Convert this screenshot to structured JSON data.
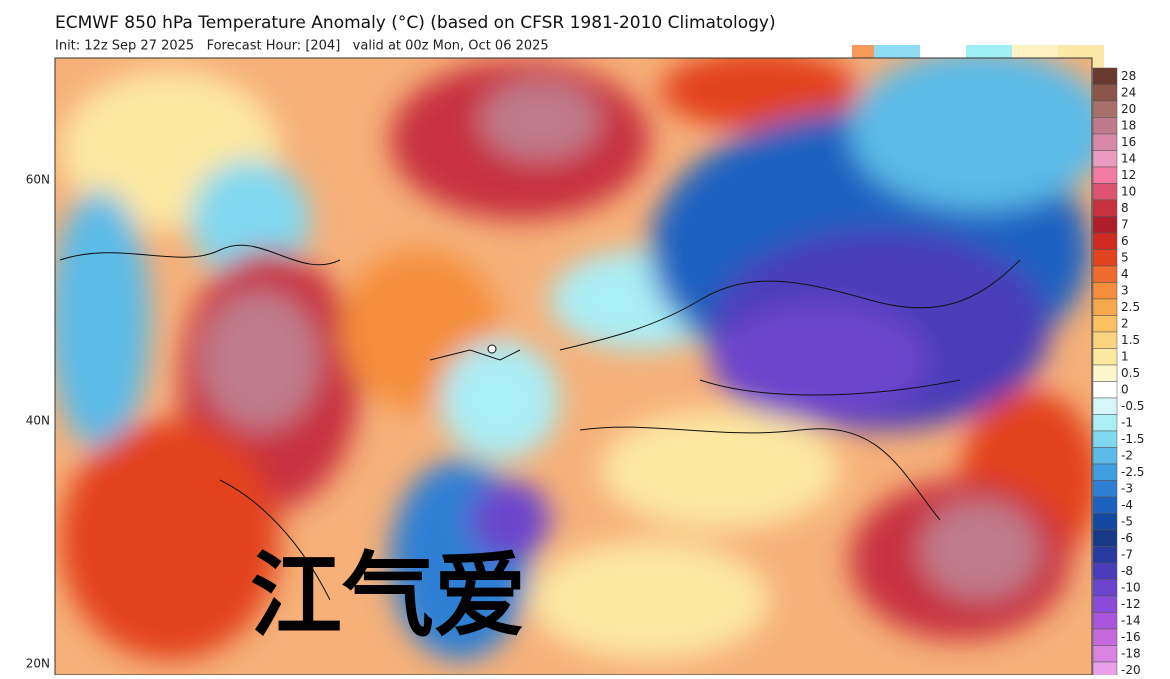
{
  "header": {
    "title": "ECMWF 850 hPa Temperature Anomaly (°C) (based on CFSR 1981-2010 Climatology)",
    "subtitle": "Init: 12z Sep 27 2025   Forecast Hour: [204]   valid at 00z Mon, Oct 06 2025"
  },
  "map": {
    "lat_labels": [
      "60N",
      "40N",
      "20N"
    ],
    "watermark": "江气爱"
  },
  "colorbar": {
    "levels": [
      28,
      24,
      20,
      18,
      16,
      14,
      12,
      10,
      8,
      7,
      6,
      5,
      4,
      3,
      2.5,
      2,
      1.5,
      1,
      0.5,
      0,
      -0.5,
      -1,
      -1.5,
      -2,
      -2.5,
      -3,
      -4,
      -5,
      -6,
      -7,
      -8,
      -10,
      -12,
      -14,
      -16,
      -18,
      -20
    ],
    "colors": [
      "#6b3a2e",
      "#8a5548",
      "#a8706a",
      "#bf7b8c",
      "#d68aa8",
      "#ea9cc0",
      "#f07aa2",
      "#dc5470",
      "#c8323f",
      "#ad1d2a",
      "#cf2a22",
      "#e2431f",
      "#ee6a2e",
      "#f58e3c",
      "#f8a84c",
      "#fbc060",
      "#fcd480",
      "#fde8a0",
      "#fef6cc",
      "#ffffff",
      "#d6f6fa",
      "#aaeef6",
      "#80d8f0",
      "#5cbbe8",
      "#409de0",
      "#2e7fd4",
      "#1e62c0",
      "#1548a0",
      "#183888",
      "#283a9e",
      "#4a3cb8",
      "#6a44cc",
      "#8a4cd8",
      "#a856dc",
      "#c46ade",
      "#d884e0",
      "#e8a0e8"
    ]
  }
}
